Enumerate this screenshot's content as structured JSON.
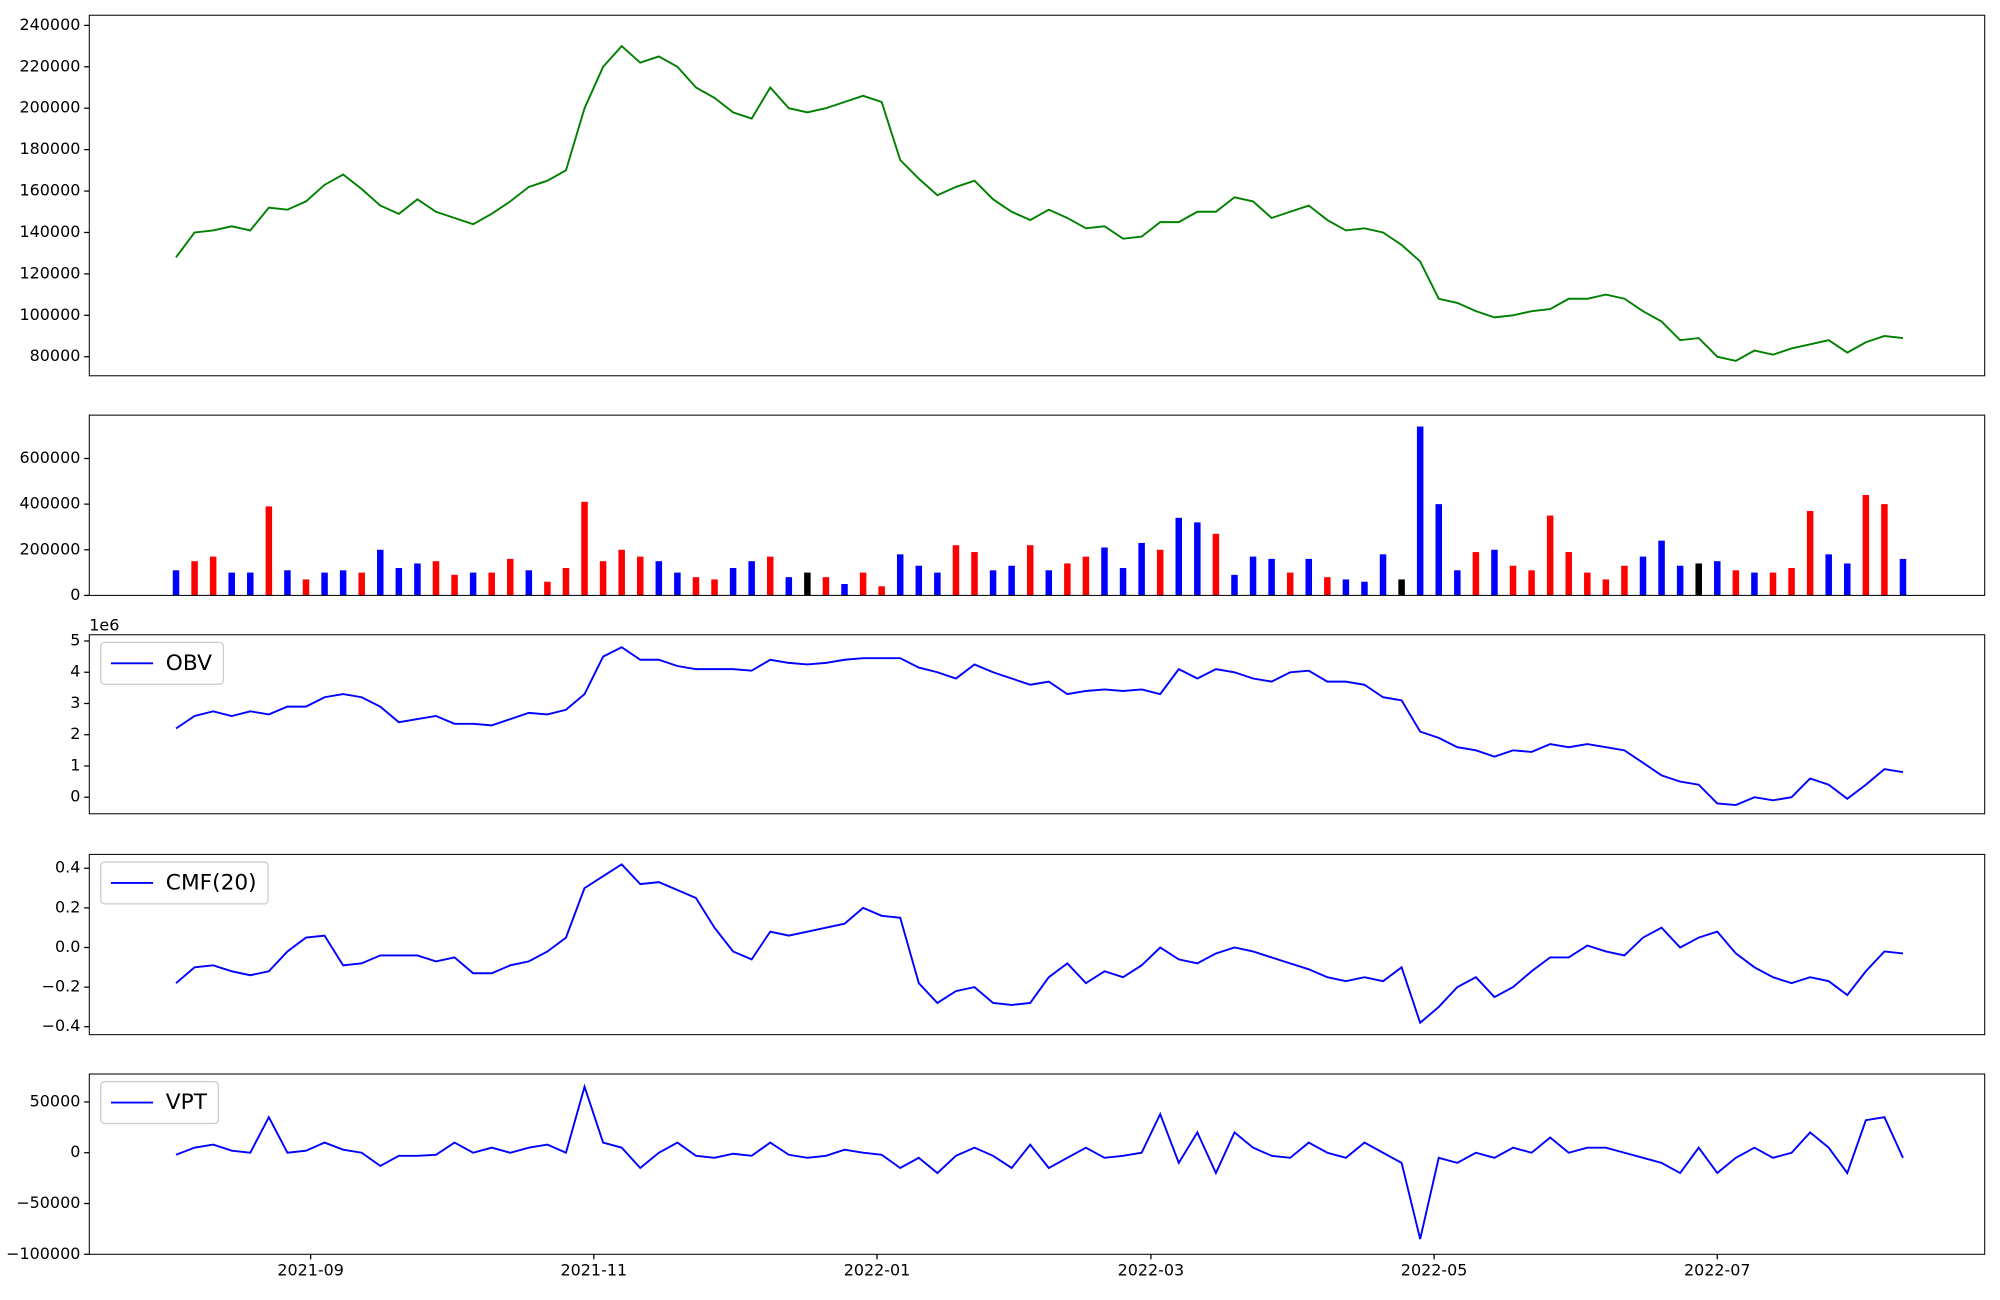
{
  "chart_data": [
    {
      "type": "line",
      "color": "green",
      "values": [
        128000,
        140000,
        141000,
        143000,
        141000,
        152000,
        151000,
        155000,
        163000,
        168000,
        161000,
        153000,
        149000,
        156000,
        150000,
        147000,
        144000,
        149000,
        155000,
        162000,
        165000,
        170000,
        200000,
        220000,
        230000,
        222000,
        225000,
        220000,
        210000,
        205000,
        198000,
        195000,
        210000,
        200000,
        198000,
        200000,
        203000,
        206000,
        203000,
        175000,
        166000,
        158000,
        162000,
        165000,
        156000,
        150000,
        146000,
        151000,
        147000,
        142000,
        143000,
        137000,
        138000,
        145000,
        145000,
        150000,
        150000,
        157000,
        155000,
        147000,
        150000,
        153000,
        146000,
        141000,
        142000,
        140000,
        134000,
        126000,
        108000,
        106000,
        102000,
        99000,
        100000,
        102000,
        103000,
        108000,
        108000,
        110000,
        108000,
        102000,
        97000,
        88000,
        89000,
        80000,
        78000,
        83000,
        81000,
        84000,
        86000,
        88000,
        82000,
        87000,
        90000,
        89000
      ],
      "xlim": [
        -4.67,
        97.4
      ],
      "ylim": [
        70800,
        244900
      ],
      "yticks": [
        80000,
        100000,
        120000,
        140000,
        160000,
        180000,
        200000,
        220000,
        240000
      ]
    },
    {
      "type": "bar",
      "values": [
        110000,
        150000,
        170000,
        100000,
        100000,
        390000,
        110000,
        70000,
        100000,
        110000,
        100000,
        200000,
        120000,
        140000,
        150000,
        90000,
        100000,
        100000,
        160000,
        110000,
        60000,
        120000,
        410000,
        150000,
        200000,
        170000,
        150000,
        100000,
        80000,
        70000,
        120000,
        150000,
        170000,
        80000,
        100000,
        80000,
        50000,
        100000,
        40000,
        180000,
        130000,
        100000,
        220000,
        190000,
        110000,
        130000,
        220000,
        110000,
        140000,
        170000,
        210000,
        120000,
        230000,
        200000,
        340000,
        320000,
        270000,
        90000,
        170000,
        160000,
        100000,
        160000,
        80000,
        70000,
        60000,
        180000,
        70000,
        740000,
        400000,
        110000,
        190000,
        200000,
        130000,
        110000,
        350000,
        190000,
        100000,
        70000,
        130000,
        170000,
        240000,
        130000,
        140000,
        150000,
        110000,
        100000,
        100000,
        120000,
        370000,
        180000,
        140000,
        440000,
        400000,
        160000
      ],
      "colors": [
        "blue",
        "red",
        "red",
        "blue",
        "blue",
        "red",
        "blue",
        "red",
        "blue",
        "blue",
        "red",
        "blue",
        "blue",
        "blue",
        "red",
        "red",
        "blue",
        "red",
        "red",
        "blue",
        "red",
        "red",
        "red",
        "red",
        "red",
        "red",
        "blue",
        "blue",
        "red",
        "red",
        "blue",
        "blue",
        "red",
        "blue",
        "black",
        "red",
        "blue",
        "red",
        "red",
        "blue",
        "blue",
        "blue",
        "red",
        "red",
        "blue",
        "blue",
        "red",
        "blue",
        "red",
        "red",
        "blue",
        "blue",
        "blue",
        "red",
        "blue",
        "blue",
        "red",
        "blue",
        "blue",
        "blue",
        "red",
        "blue",
        "red",
        "blue",
        "blue",
        "blue",
        "black",
        "blue",
        "blue",
        "blue",
        "red",
        "blue",
        "red",
        "red",
        "red",
        "red",
        "red",
        "red",
        "red",
        "blue",
        "blue",
        "blue",
        "black",
        "blue",
        "red",
        "blue",
        "red",
        "red",
        "red",
        "blue",
        "blue",
        "red",
        "red",
        "blue"
      ],
      "xlim": [
        -4.67,
        97.4
      ],
      "ylim": [
        0,
        790000
      ],
      "yticks": [
        0,
        200000,
        400000,
        600000
      ]
    },
    {
      "type": "line",
      "offset_label": "1e6",
      "series": [
        {
          "name": "OBV",
          "color": "blue",
          "values": [
            2200000,
            2600000,
            2750000,
            2600000,
            2750000,
            2650000,
            2900000,
            2900000,
            3200000,
            3300000,
            3200000,
            2900000,
            2400000,
            2500000,
            2600000,
            2350000,
            2350000,
            2300000,
            2500000,
            2700000,
            2650000,
            2800000,
            3300000,
            4500000,
            4800000,
            4400000,
            4400000,
            4200000,
            4100000,
            4100000,
            4100000,
            4050000,
            4400000,
            4300000,
            4250000,
            4300000,
            4400000,
            4450000,
            4450000,
            4450000,
            4150000,
            4000000,
            3800000,
            4250000,
            4000000,
            3800000,
            3600000,
            3700000,
            3300000,
            3400000,
            3450000,
            3400000,
            3450000,
            3300000,
            4100000,
            3800000,
            4100000,
            4000000,
            3800000,
            3700000,
            4000000,
            4050000,
            3700000,
            3700000,
            3600000,
            3200000,
            3100000,
            2100000,
            1900000,
            1600000,
            1500000,
            1300000,
            1500000,
            1450000,
            1700000,
            1600000,
            1700000,
            1600000,
            1500000,
            1100000,
            700000,
            500000,
            400000,
            -200000,
            -250000,
            0,
            -100000,
            0,
            600000,
            400000,
            -50000,
            400000,
            900000,
            800000
          ]
        }
      ],
      "xlim": [
        -4.67,
        97.4
      ],
      "ylim": [
        -530000,
        5200000
      ],
      "yticks": [
        {
          "value": 0,
          "label": "0"
        },
        {
          "value": 1000000,
          "label": "1"
        },
        {
          "value": 2000000,
          "label": "2"
        },
        {
          "value": 3000000,
          "label": "3"
        },
        {
          "value": 4000000,
          "label": "4"
        },
        {
          "value": 5000000,
          "label": "5"
        }
      ]
    },
    {
      "type": "line",
      "series": [
        {
          "name": "CMF(20)",
          "color": "blue",
          "values": [
            -0.18,
            -0.1,
            -0.09,
            -0.12,
            -0.14,
            -0.12,
            -0.02,
            0.05,
            0.06,
            -0.09,
            -0.08,
            -0.04,
            -0.04,
            -0.04,
            -0.07,
            -0.05,
            -0.13,
            -0.13,
            -0.09,
            -0.07,
            -0.02,
            0.05,
            0.3,
            0.36,
            0.42,
            0.32,
            0.33,
            0.29,
            0.25,
            0.1,
            -0.02,
            -0.06,
            0.08,
            0.06,
            0.08,
            0.1,
            0.12,
            0.2,
            0.16,
            0.15,
            -0.18,
            -0.28,
            -0.22,
            -0.2,
            -0.28,
            -0.29,
            -0.28,
            -0.15,
            -0.08,
            -0.18,
            -0.12,
            -0.15,
            -0.09,
            0.0,
            -0.06,
            -0.08,
            -0.03,
            0.0,
            -0.02,
            -0.05,
            -0.08,
            -0.11,
            -0.15,
            -0.17,
            -0.15,
            -0.17,
            -0.1,
            -0.38,
            -0.3,
            -0.2,
            -0.15,
            -0.25,
            -0.2,
            -0.12,
            -0.05,
            -0.05,
            0.01,
            -0.02,
            -0.04,
            0.05,
            0.1,
            0.0,
            0.05,
            0.08,
            -0.03,
            -0.1,
            -0.15,
            -0.18,
            -0.15,
            -0.17,
            -0.24,
            -0.12,
            -0.02,
            -0.03
          ]
        }
      ],
      "xlim": [
        -4.67,
        97.4
      ],
      "ylim": [
        -0.44,
        0.47
      ],
      "yticks": [
        {
          "value": -0.4,
          "label": "−0.4"
        },
        {
          "value": -0.2,
          "label": "−0.2"
        },
        {
          "value": 0,
          "label": "0.0"
        },
        0.2,
        0.4
      ]
    },
    {
      "type": "line",
      "series": [
        {
          "name": "VPT",
          "color": "blue",
          "values": [
            -2000,
            5000,
            8000,
            2000,
            0,
            35000,
            0,
            2000,
            10000,
            3000,
            0,
            -13000,
            -3000,
            -3000,
            -2000,
            10000,
            0,
            5000,
            0,
            5000,
            8000,
            0,
            65000,
            10000,
            5000,
            -15000,
            0,
            10000,
            -3000,
            -5000,
            -1000,
            -3000,
            10000,
            -2000,
            -5000,
            -3000,
            3000,
            0,
            -2000,
            -15000,
            -5000,
            -20000,
            -3000,
            5000,
            -3000,
            -15000,
            8000,
            -15000,
            -5000,
            5000,
            -5000,
            -3000,
            0,
            38000,
            -10000,
            20000,
            -20000,
            20000,
            5000,
            -3000,
            -5000,
            10000,
            0,
            -5000,
            10000,
            0,
            -10000,
            -85000,
            -5000,
            -10000,
            0,
            -5000,
            5000,
            0,
            15000,
            0,
            5000,
            5000,
            0,
            -5000,
            -10000,
            -20000,
            5000,
            -20000,
            -5000,
            5000,
            -5000,
            0,
            20000,
            5000,
            -20000,
            32000,
            35000,
            -5000
          ]
        }
      ],
      "xlim": [
        -4.67,
        97.4
      ],
      "ylim": [
        -100000,
        77500
      ],
      "yticks": [
        {
          "value": -100000,
          "label": "−100000"
        },
        {
          "value": -50000,
          "label": "−50000"
        },
        0,
        50000
      ],
      "xticks": [
        {
          "value": 7.25,
          "label": "2021-09"
        },
        {
          "value": 22.5,
          "label": "2021-11"
        },
        {
          "value": 37.75,
          "label": "2022-01"
        },
        {
          "value": 52.5,
          "label": "2022-03"
        },
        {
          "value": 67.75,
          "label": "2022-05"
        },
        {
          "value": 83,
          "label": "2022-07"
        }
      ]
    }
  ]
}
